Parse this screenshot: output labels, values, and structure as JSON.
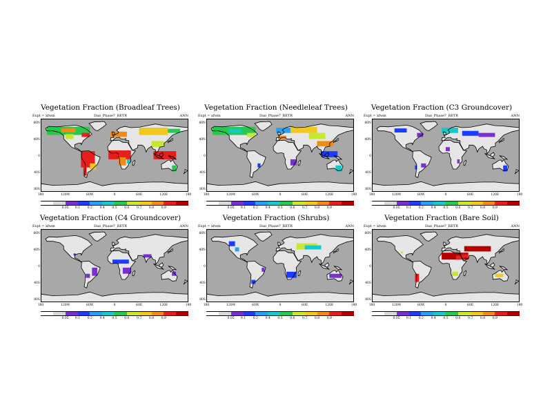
{
  "figure": {
    "panels": [
      {
        "title": "Vegetation Fraction (Broadleaf Trees)",
        "expt": "Expt = xfwm",
        "run": "Dan_Phase7_BETR",
        "period": "ANN",
        "colorbar_labels": [
          "0.05",
          "0.1",
          "0.2",
          "0.4",
          "0.5",
          "0.6",
          "0.7",
          "0.8",
          "0.9"
        ]
      },
      {
        "title": "Vegetation Fraction (Needleleaf Trees)",
        "expt": "Expt = xfwm",
        "run": "Dan_Phase7_BETR",
        "period": "ANN",
        "colorbar_labels": [
          "0.05",
          "0.1",
          "0.2",
          "0.4",
          "0.5",
          "0.6",
          "0.7",
          "0.8",
          "0.9"
        ]
      },
      {
        "title": "Vegetation Fraction (C3 Groundcover)",
        "expt": "Expt = xfwm",
        "run": "Dan_Phase7_BETR",
        "period": "ANN",
        "colorbar_labels": [
          "0.05",
          "0.1",
          "0.2",
          "0.4",
          "0.5",
          "0.6",
          "0.7",
          "0.8",
          "0.9"
        ]
      },
      {
        "title": "Vegetation Fraction (C4 Groundcover)",
        "expt": "Expt = xfwm",
        "run": "Dan_Phase7_BETR",
        "period": "ANN",
        "colorbar_labels": [
          "0.05",
          "0.1",
          "0.2",
          "0.4",
          "0.5",
          "0.6",
          "0.7",
          "0.8",
          "0.9"
        ]
      },
      {
        "title": "Vegetation Fraction (Shrubs)",
        "expt": "Expt = xfwm",
        "run": "Dan_Phase7_BETR",
        "period": "ANN",
        "colorbar_labels": [
          "0.05",
          "0.1",
          "0.2",
          "0.4",
          "0.5",
          "0.6",
          "0.7",
          "0.8",
          "0.9"
        ]
      },
      {
        "title": "Vegetation Fraction (Bare Soil)",
        "expt": "Expt = xfwm",
        "run": "Dan_Phase7_BETR",
        "period": "ANN",
        "colorbar_labels": [
          "0.05",
          "0.1",
          "0.2",
          "0.4",
          "0.5",
          "0.6",
          "0.7",
          "0.8",
          "0.9"
        ]
      }
    ],
    "lat_labels": [
      "80N",
      "40N",
      "0",
      "40S",
      "80S"
    ],
    "lon_labels": [
      "180",
      "120W",
      "60W",
      "0",
      "60E",
      "120E",
      "180"
    ],
    "colorbar_colors": [
      "#ffffff",
      "#d9d9d9",
      "#7a2fd0",
      "#1e3cff",
      "#2aa0f0",
      "#19c8c8",
      "#28c850",
      "#c8e632",
      "#f0c81e",
      "#f08c14",
      "#e61e1e",
      "#b40000"
    ],
    "map_colors": {
      "background": "#a8a8a8",
      "land": "#e6e6e6",
      "coast": "#000000"
    }
  }
}
